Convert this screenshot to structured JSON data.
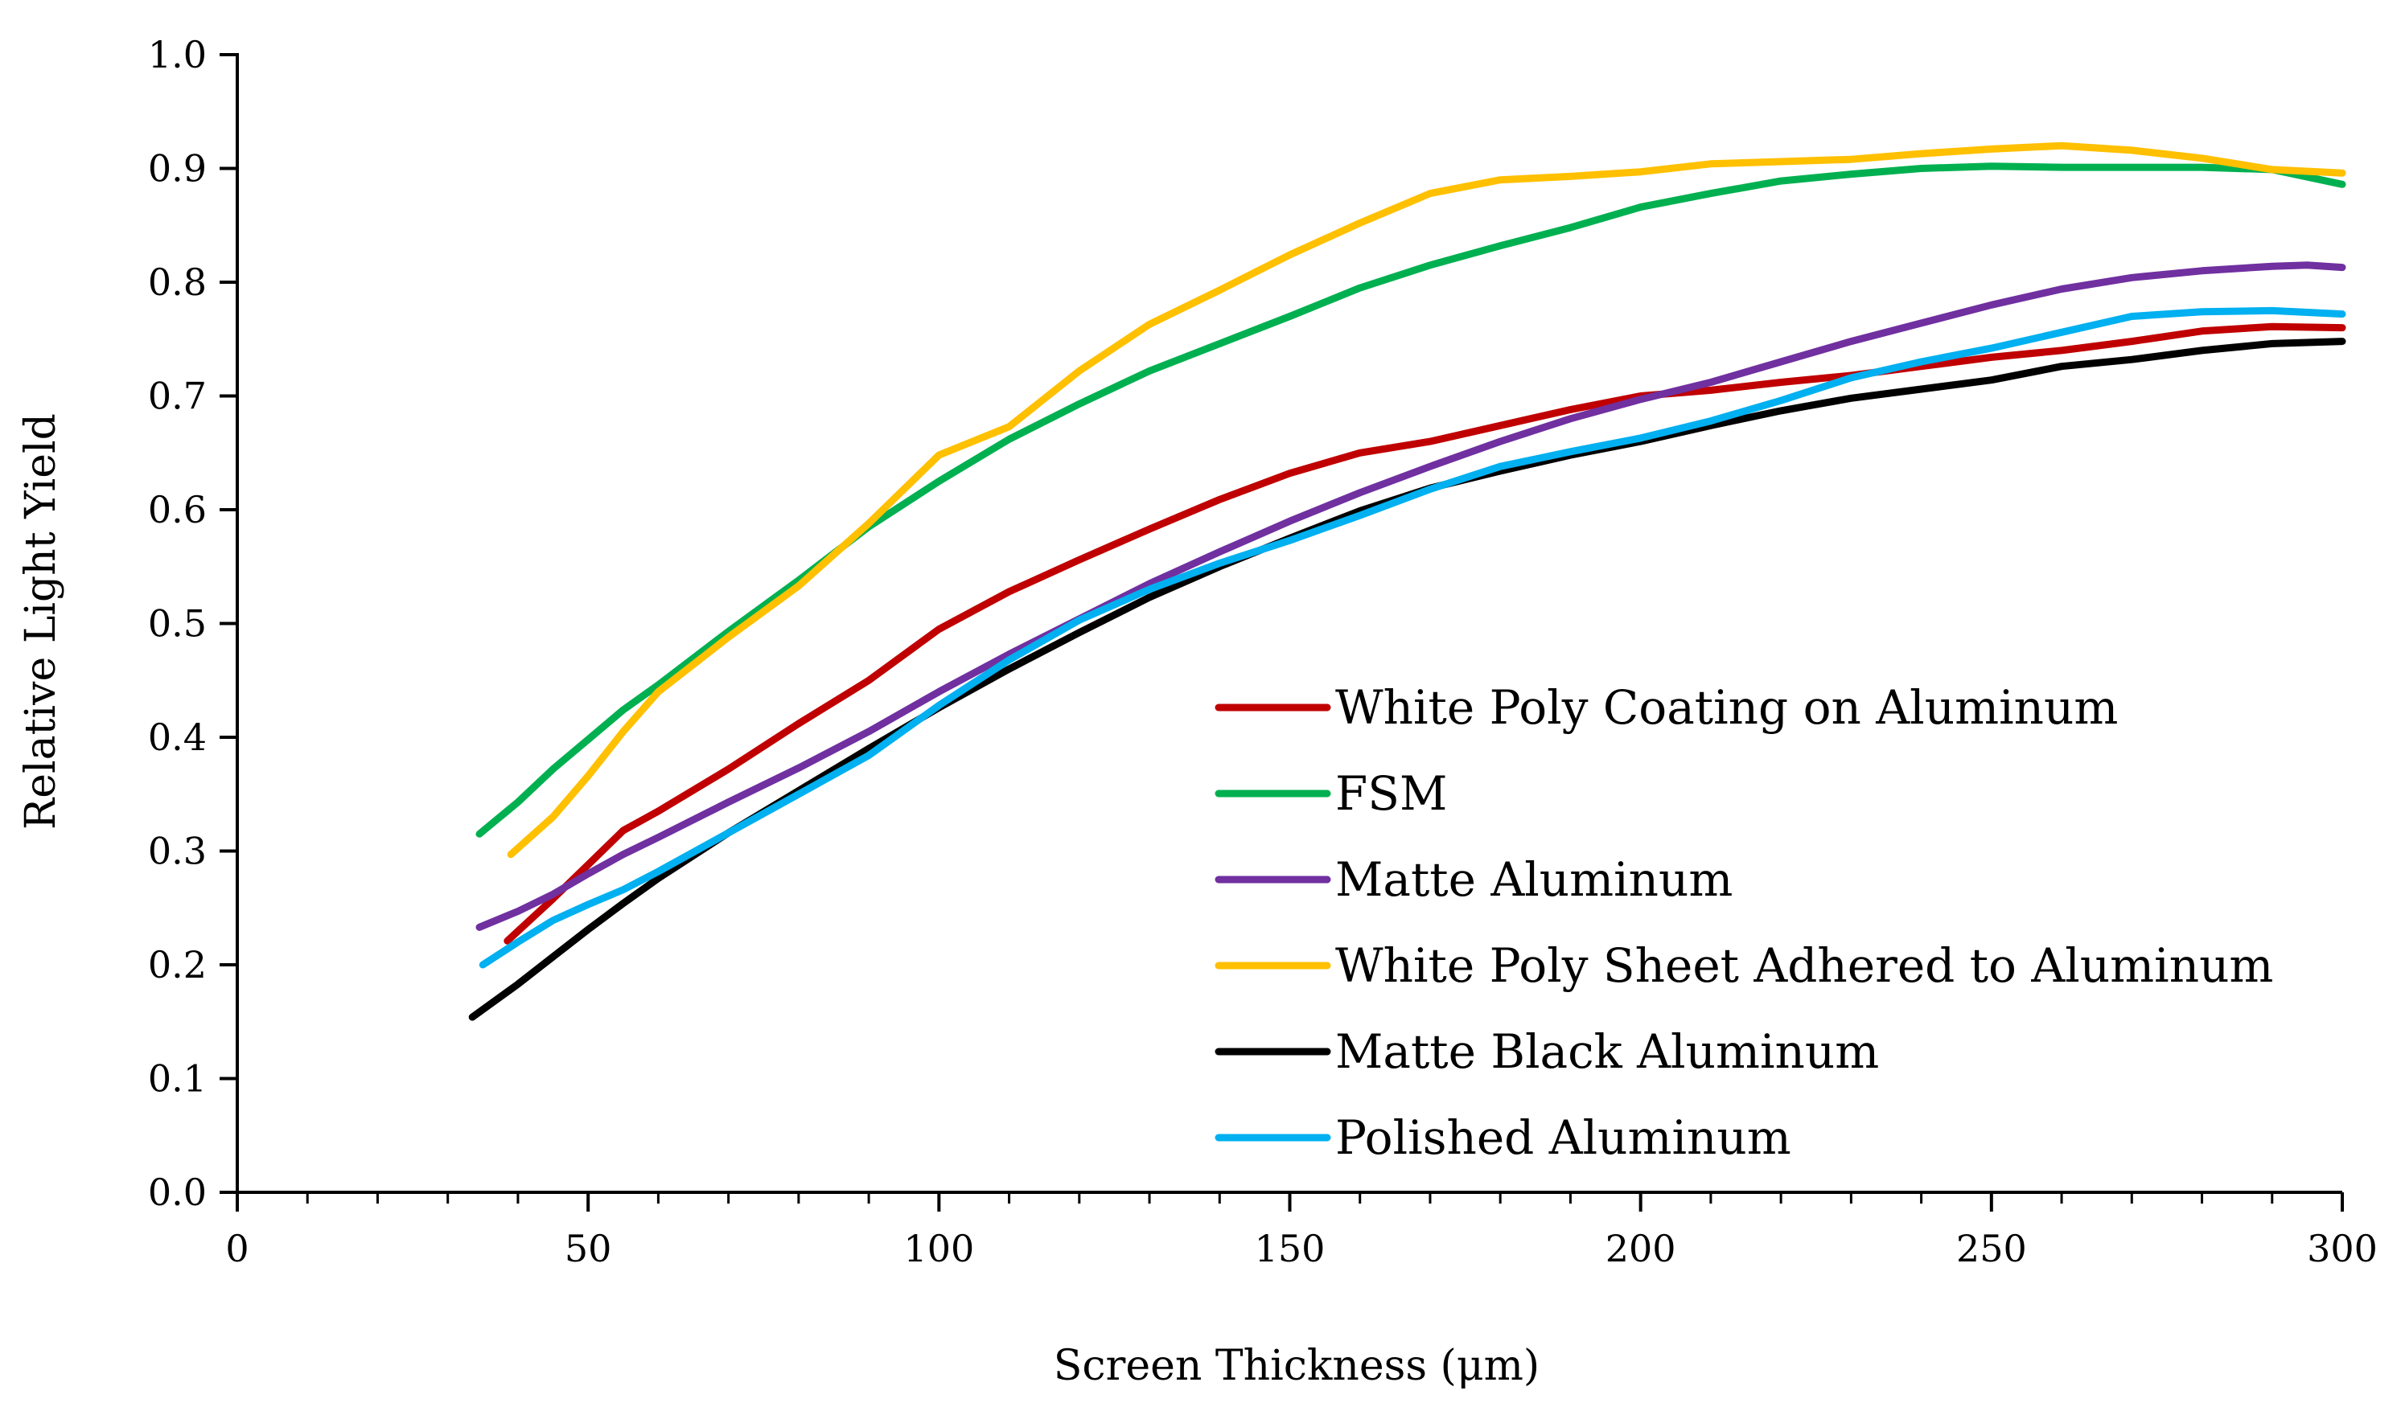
{
  "chart_data": {
    "type": "line",
    "title": "",
    "xlabel": "Screen Thickness (μm)",
    "ylabel": "Relative Light Yield",
    "xlim": [
      0,
      300
    ],
    "ylim": [
      0.0,
      1.0
    ],
    "xticks": [
      0,
      50,
      100,
      150,
      200,
      250,
      300
    ],
    "xtick_labels": [
      "0",
      "50",
      "100",
      "150",
      "200",
      "250",
      "300"
    ],
    "xminor_step": 10,
    "yticks": [
      0.0,
      0.1,
      0.2,
      0.3,
      0.4,
      0.5,
      0.6,
      0.7,
      0.8,
      0.9,
      1.0
    ],
    "ytick_labels": [
      "0.0",
      "0.1",
      "0.2",
      "0.3",
      "0.4",
      "0.5",
      "0.6",
      "0.7",
      "0.8",
      "0.9",
      "1.0"
    ],
    "grid": false,
    "legend_position": "bottom-right",
    "series": [
      {
        "name": "White Poly Coating on Aluminum",
        "color": "#C00000",
        "x": [
          38.5,
          45,
          50,
          55,
          60,
          70,
          80,
          90,
          100,
          110,
          120,
          130,
          140,
          150,
          160,
          170,
          180,
          190,
          200,
          210,
          220,
          230,
          240,
          250,
          260,
          270,
          280,
          290,
          300
        ],
        "y": [
          0.221,
          0.258,
          0.288,
          0.318,
          0.335,
          0.372,
          0.412,
          0.45,
          0.495,
          0.528,
          0.556,
          0.583,
          0.609,
          0.632,
          0.65,
          0.66,
          0.674,
          0.688,
          0.7,
          0.705,
          0.712,
          0.718,
          0.726,
          0.734,
          0.74,
          0.748,
          0.757,
          0.761,
          0.76
        ]
      },
      {
        "name": "FSM",
        "color": "#00B050",
        "x": [
          34.5,
          40,
          45,
          50,
          55,
          60,
          70,
          80,
          90,
          100,
          110,
          120,
          130,
          140,
          150,
          160,
          170,
          180,
          190,
          200,
          210,
          220,
          230,
          240,
          250,
          260,
          270,
          280,
          290,
          300
        ],
        "y": [
          0.315,
          0.343,
          0.372,
          0.398,
          0.424,
          0.446,
          0.493,
          0.538,
          0.585,
          0.625,
          0.662,
          0.693,
          0.722,
          0.746,
          0.77,
          0.795,
          0.815,
          0.832,
          0.848,
          0.866,
          0.878,
          0.889,
          0.895,
          0.9,
          0.902,
          0.901,
          0.901,
          0.901,
          0.899,
          0.886
        ]
      },
      {
        "name": "Matte Aluminum",
        "color": "#7030A0",
        "x": [
          34.5,
          40,
          45,
          50,
          55,
          60,
          70,
          80,
          90,
          100,
          110,
          120,
          130,
          140,
          150,
          160,
          170,
          180,
          190,
          200,
          210,
          220,
          230,
          240,
          250,
          260,
          270,
          280,
          290,
          295,
          300
        ],
        "y": [
          0.233,
          0.247,
          0.262,
          0.28,
          0.297,
          0.312,
          0.343,
          0.373,
          0.405,
          0.44,
          0.473,
          0.504,
          0.535,
          0.563,
          0.59,
          0.615,
          0.638,
          0.66,
          0.68,
          0.697,
          0.712,
          0.73,
          0.748,
          0.764,
          0.78,
          0.794,
          0.804,
          0.81,
          0.814,
          0.815,
          0.813
        ]
      },
      {
        "name": "White Poly Sheet Adhered to Aluminum",
        "color": "#FFC000",
        "x": [
          39,
          45,
          50,
          55,
          60,
          70,
          80,
          90,
          100,
          110,
          120,
          130,
          140,
          150,
          160,
          170,
          180,
          190,
          200,
          210,
          220,
          230,
          240,
          250,
          260,
          270,
          280,
          290,
          300
        ],
        "y": [
          0.297,
          0.33,
          0.366,
          0.405,
          0.44,
          0.488,
          0.533,
          0.588,
          0.648,
          0.673,
          0.722,
          0.763,
          0.793,
          0.824,
          0.852,
          0.878,
          0.89,
          0.893,
          0.897,
          0.904,
          0.906,
          0.908,
          0.913,
          0.917,
          0.92,
          0.916,
          0.909,
          0.899,
          0.896
        ]
      },
      {
        "name": "Matte Black Aluminum",
        "color": "#000000",
        "x": [
          33.5,
          40,
          45,
          50,
          55,
          60,
          70,
          80,
          90,
          100,
          110,
          120,
          130,
          140,
          150,
          160,
          170,
          180,
          190,
          200,
          210,
          220,
          230,
          240,
          250,
          260,
          270,
          280,
          290,
          300
        ],
        "y": [
          0.154,
          0.183,
          0.207,
          0.231,
          0.254,
          0.276,
          0.316,
          0.353,
          0.39,
          0.426,
          0.46,
          0.492,
          0.523,
          0.55,
          0.575,
          0.599,
          0.619,
          0.634,
          0.648,
          0.66,
          0.674,
          0.687,
          0.698,
          0.706,
          0.714,
          0.726,
          0.732,
          0.74,
          0.746,
          0.748
        ]
      },
      {
        "name": "Polished Aluminum",
        "color": "#00B0F0",
        "x": [
          35,
          40,
          45,
          50,
          55,
          60,
          70,
          80,
          90,
          100,
          110,
          120,
          130,
          140,
          150,
          160,
          170,
          180,
          190,
          200,
          210,
          220,
          230,
          240,
          250,
          260,
          270,
          280,
          290,
          300
        ],
        "y": [
          0.2,
          0.22,
          0.239,
          0.253,
          0.266,
          0.282,
          0.316,
          0.35,
          0.384,
          0.428,
          0.468,
          0.503,
          0.53,
          0.553,
          0.573,
          0.595,
          0.618,
          0.638,
          0.651,
          0.663,
          0.678,
          0.696,
          0.716,
          0.73,
          0.742,
          0.756,
          0.77,
          0.774,
          0.775,
          0.772
        ]
      }
    ]
  }
}
